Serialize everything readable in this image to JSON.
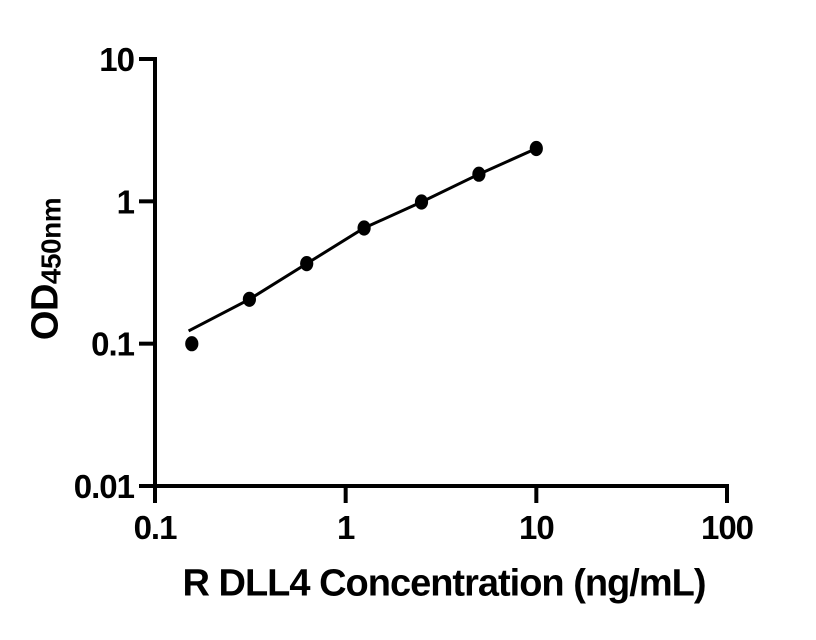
{
  "chart_data": {
    "type": "scatter",
    "title": "",
    "xlabel": "R DLL4 Concentration (ng/mL)",
    "ylabel_main": "OD",
    "ylabel_sub": "450nm",
    "x_scale": "log",
    "y_scale": "log",
    "xlim": [
      0.1,
      100
    ],
    "ylim": [
      0.01,
      10
    ],
    "grid": false,
    "legend": "none",
    "x": [
      0.156,
      0.3125,
      0.625,
      1.25,
      2.5,
      5,
      10
    ],
    "y": [
      0.1,
      0.205,
      0.365,
      0.65,
      0.99,
      1.55,
      2.35
    ],
    "fit_line": [
      [
        0.15,
        0.123
      ],
      [
        0.3125,
        0.205
      ],
      [
        0.625,
        0.365
      ],
      [
        1.25,
        0.65
      ],
      [
        2.5,
        0.99
      ],
      [
        5,
        1.55
      ],
      [
        10,
        2.35
      ]
    ],
    "x_ticks": [
      {
        "value": 0.1,
        "label": "0.1"
      },
      {
        "value": 1,
        "label": "1"
      },
      {
        "value": 10,
        "label": "10"
      },
      {
        "value": 100,
        "label": "100"
      }
    ],
    "y_ticks": [
      {
        "value": 0.01,
        "label": "0.01"
      },
      {
        "value": 0.1,
        "label": "0.1"
      },
      {
        "value": 1,
        "label": "1"
      },
      {
        "value": 10,
        "label": "10"
      }
    ],
    "marker_color": "#000000",
    "line_color": "#000000",
    "axis_color": "#000000",
    "background_color": "#ffffff"
  }
}
